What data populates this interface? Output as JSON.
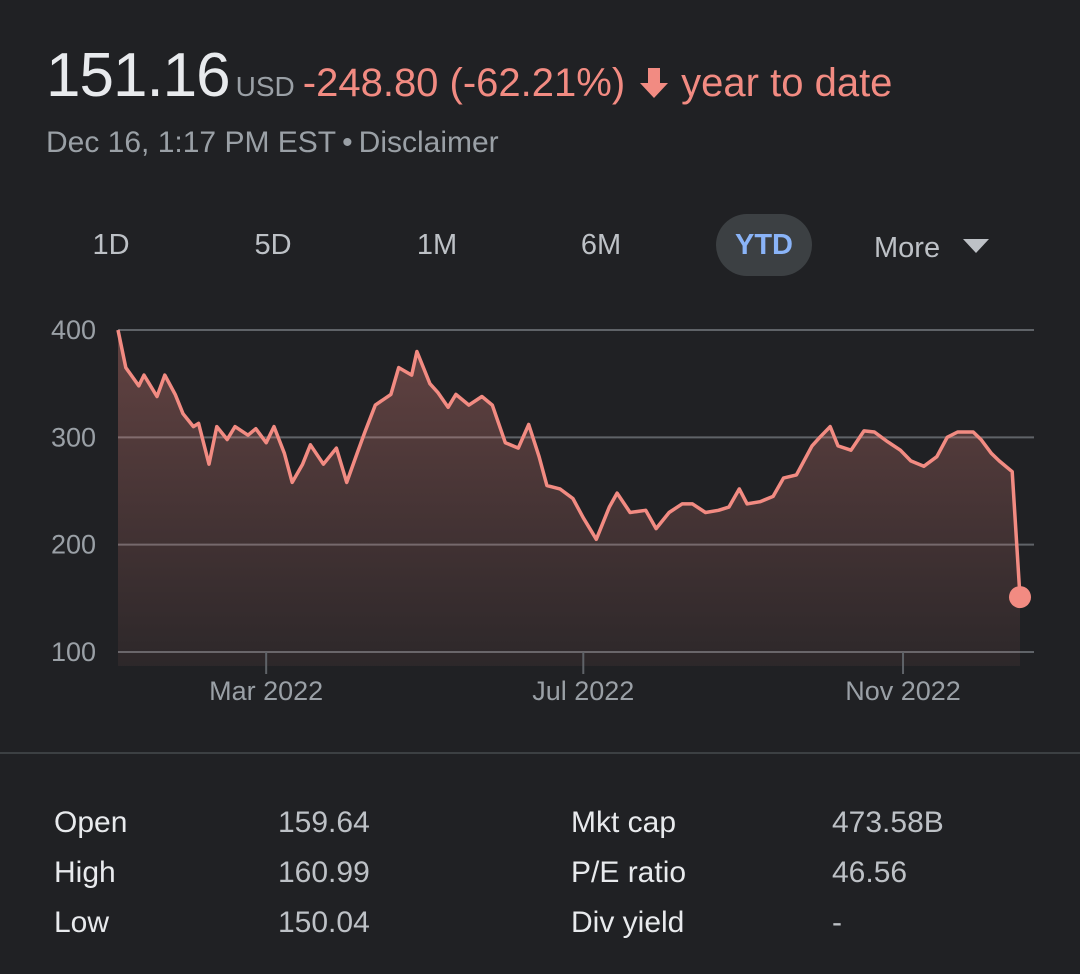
{
  "header": {
    "price": "151.16",
    "currency": "USD",
    "change": "-248.80 (-62.21%)",
    "period_text": "year to date",
    "timestamp": "Dec 16, 1:17 PM EST",
    "separator": "•",
    "disclaimer": "Disclaimer",
    "down_color": "#f28b82",
    "arrow_icon": "arrow-down-icon"
  },
  "ranges": {
    "tabs": [
      "1D",
      "5D",
      "1M",
      "6M",
      "YTD"
    ],
    "active": "YTD",
    "more_label": "More",
    "more_icon": "caret-down-icon"
  },
  "chart_data": {
    "type": "area",
    "title": "",
    "xlabel": "",
    "ylabel": "",
    "ylim": [
      100,
      400
    ],
    "yticks": [
      "100",
      "200",
      "300",
      "400"
    ],
    "xticks": [
      {
        "date": "2022-03-01",
        "label": "Mar 2022"
      },
      {
        "date": "2022-07-01",
        "label": "Jul 2022"
      },
      {
        "date": "2022-11-01",
        "label": "Nov 2022"
      }
    ],
    "grid": true,
    "line_color": "#f28b82",
    "series": [
      {
        "values": [
          [
            "2022-01-03",
            400
          ],
          [
            "2022-01-06",
            365
          ],
          [
            "2022-01-11",
            348
          ],
          [
            "2022-01-13",
            358
          ],
          [
            "2022-01-18",
            338
          ],
          [
            "2022-01-21",
            358
          ],
          [
            "2022-01-25",
            340
          ],
          [
            "2022-01-28",
            322
          ],
          [
            "2022-02-01",
            310
          ],
          [
            "2022-02-03",
            313
          ],
          [
            "2022-02-07",
            275
          ],
          [
            "2022-02-10",
            310
          ],
          [
            "2022-02-14",
            298
          ],
          [
            "2022-02-17",
            310
          ],
          [
            "2022-02-22",
            302
          ],
          [
            "2022-02-25",
            308
          ],
          [
            "2022-03-01",
            295
          ],
          [
            "2022-03-04",
            310
          ],
          [
            "2022-03-08",
            285
          ],
          [
            "2022-03-11",
            258
          ],
          [
            "2022-03-15",
            275
          ],
          [
            "2022-03-18",
            293
          ],
          [
            "2022-03-23",
            275
          ],
          [
            "2022-03-28",
            290
          ],
          [
            "2022-04-01",
            258
          ],
          [
            "2022-04-05",
            285
          ],
          [
            "2022-04-08",
            305
          ],
          [
            "2022-04-12",
            330
          ],
          [
            "2022-04-18",
            340
          ],
          [
            "2022-04-21",
            365
          ],
          [
            "2022-04-26",
            358
          ],
          [
            "2022-04-28",
            380
          ],
          [
            "2022-05-03",
            350
          ],
          [
            "2022-05-06",
            342
          ],
          [
            "2022-05-10",
            328
          ],
          [
            "2022-05-13",
            340
          ],
          [
            "2022-05-18",
            330
          ],
          [
            "2022-05-23",
            338
          ],
          [
            "2022-05-27",
            330
          ],
          [
            "2022-06-01",
            295
          ],
          [
            "2022-06-06",
            290
          ],
          [
            "2022-06-10",
            312
          ],
          [
            "2022-06-14",
            282
          ],
          [
            "2022-06-17",
            255
          ],
          [
            "2022-06-22",
            252
          ],
          [
            "2022-06-27",
            243
          ],
          [
            "2022-07-01",
            225
          ],
          [
            "2022-07-06",
            205
          ],
          [
            "2022-07-11",
            235
          ],
          [
            "2022-07-14",
            248
          ],
          [
            "2022-07-19",
            230
          ],
          [
            "2022-07-25",
            232
          ],
          [
            "2022-07-29",
            215
          ],
          [
            "2022-08-03",
            230
          ],
          [
            "2022-08-08",
            238
          ],
          [
            "2022-08-12",
            238
          ],
          [
            "2022-08-17",
            230
          ],
          [
            "2022-08-22",
            232
          ],
          [
            "2022-08-26",
            235
          ],
          [
            "2022-08-30",
            252
          ],
          [
            "2022-09-02",
            238
          ],
          [
            "2022-09-07",
            240
          ],
          [
            "2022-09-12",
            245
          ],
          [
            "2022-09-16",
            262
          ],
          [
            "2022-09-21",
            265
          ],
          [
            "2022-09-27",
            292
          ],
          [
            "2022-09-30",
            300
          ],
          [
            "2022-10-04",
            310
          ],
          [
            "2022-10-07",
            292
          ],
          [
            "2022-10-12",
            288
          ],
          [
            "2022-10-17",
            306
          ],
          [
            "2022-10-21",
            305
          ],
          [
            "2022-10-26",
            296
          ],
          [
            "2022-10-31",
            288
          ],
          [
            "2022-11-04",
            278
          ],
          [
            "2022-11-09",
            273
          ],
          [
            "2022-11-14",
            282
          ],
          [
            "2022-11-18",
            300
          ],
          [
            "2022-11-22",
            305
          ],
          [
            "2022-11-28",
            305
          ],
          [
            "2022-12-01",
            298
          ],
          [
            "2022-12-05",
            285
          ],
          [
            "2022-12-08",
            278
          ],
          [
            "2022-12-13",
            268
          ],
          [
            "2022-12-16",
            151.16
          ]
        ]
      }
    ]
  },
  "stats": {
    "left": [
      {
        "label": "Open",
        "value": "159.64"
      },
      {
        "label": "High",
        "value": "160.99"
      },
      {
        "label": "Low",
        "value": "150.04"
      }
    ],
    "right": [
      {
        "label": "Mkt cap",
        "value": "473.58B"
      },
      {
        "label": "P/E ratio",
        "value": "46.56"
      },
      {
        "label": "Div yield",
        "value": "-"
      }
    ]
  }
}
